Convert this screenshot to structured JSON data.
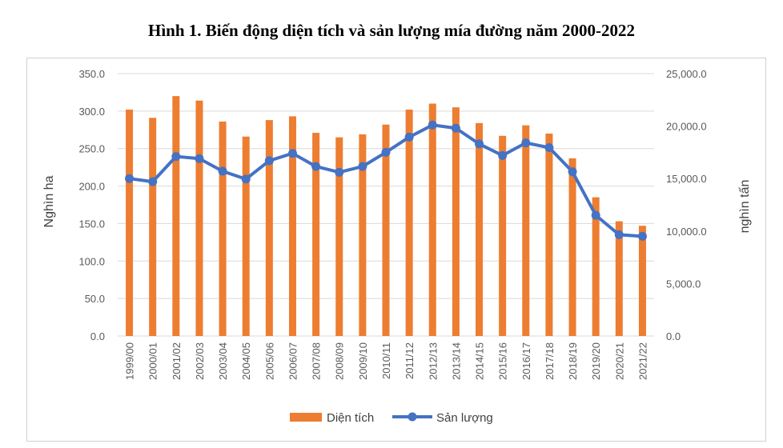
{
  "title": "Hình 1. Biến động diện tích và sản lượng mía đường năm 2000-2022",
  "chart_data": {
    "type": "bar",
    "title": "Hình 1. Biến động diện tích và sản lượng mía đường năm 2000-2022",
    "categories": [
      "1999/00",
      "2000/01",
      "2001/02",
      "2002/03",
      "2003/04",
      "2004/05",
      "2005/06",
      "2006/07",
      "2007/08",
      "2008/09",
      "2009/10",
      "2010/11",
      "2011/12",
      "2012/13",
      "2013/14",
      "2014/15",
      "2015/16",
      "2016/17",
      "2017/18",
      "2018/19",
      "2019/20",
      "2020/21",
      "2021/22"
    ],
    "y_left": {
      "label": "Nghìn ha",
      "lim": [
        0,
        350
      ],
      "ticks": [
        "0.0",
        "50.0",
        "100.0",
        "150.0",
        "200.0",
        "250.0",
        "300.0",
        "350.0"
      ]
    },
    "y_right": {
      "label": "nghìn tấn",
      "lim": [
        0,
        25000
      ],
      "ticks": [
        "0.0",
        "5,000.0",
        "10,000.0",
        "15,000.0",
        "20,000.0",
        "25,000.0"
      ]
    },
    "series": [
      {
        "name": "Diện tích",
        "type": "bar",
        "axis": "left",
        "color": "#ED7D31",
        "values": [
          302,
          291,
          320,
          314,
          286,
          266,
          288,
          293,
          271,
          265,
          269,
          282,
          302,
          310,
          305,
          284,
          267,
          281,
          270,
          237,
          185,
          153,
          147
        ]
      },
      {
        "name": "Sản lượng",
        "type": "line",
        "axis": "right",
        "color": "#4472C4",
        "values": [
          15000,
          14700,
          17100,
          16900,
          15700,
          14950,
          16700,
          17400,
          16150,
          15600,
          16150,
          17500,
          18950,
          20100,
          19800,
          18300,
          17200,
          18400,
          17950,
          15650,
          11500,
          9650,
          9500
        ]
      }
    ],
    "grid": "horizontal",
    "legend": "bottom"
  }
}
